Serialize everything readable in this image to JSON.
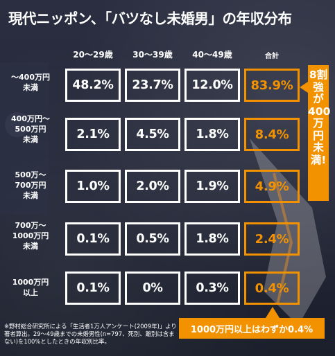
{
  "title": "現代ニッポン、「バツなし未婚男」の年収分布",
  "column_headers": [
    "20〜29歳",
    "30〜39歳",
    "40〜49歳",
    "合計"
  ],
  "row_labels": [
    "〜400万円\n未満",
    "400万円〜\n500万円\n未満",
    "500万〜\n700万円\n未満",
    "700万〜\n1000万円\n未満",
    "1000万円\n以上"
  ],
  "cells": [
    [
      "48.2%",
      "23.7%",
      "12.0%",
      "83.9%"
    ],
    [
      "2.1%",
      "4.5%",
      "1.8%",
      "8.4%"
    ],
    [
      "1.0%",
      "2.0%",
      "1.9%",
      "4.9%"
    ],
    [
      "0.1%",
      "0.5%",
      "1.8%",
      "2.4%"
    ],
    [
      "0.1%",
      "0%",
      "0.3%",
      "0.4%"
    ]
  ],
  "callout_main": "8割強が400万円未満!",
  "callout_bottom": "1000万円以上はわずか0.4%",
  "footnote": "※野村総合研究所による「生活者1万人アンケート(2009年)」より著者算出。29〜49歳までの未婚男性(n=797、死別、離別は含まない)を100%としたときの年収別比率。",
  "colors": {
    "accent": "#f39200",
    "text": "#ffffff",
    "background": "#1e2231"
  },
  "chart_data": {
    "type": "table",
    "title": "現代ニッポン、「バツなし未婚男」の年収分布",
    "columns": [
      "20〜29歳",
      "30〜39歳",
      "40〜49歳",
      "合計"
    ],
    "rows": [
      "〜400万円未満",
      "400万円〜500万円未満",
      "500万〜700万円未満",
      "700万〜1000万円未満",
      "1000万円以上"
    ],
    "values": [
      [
        48.2,
        23.7,
        12.0,
        83.9
      ],
      [
        2.1,
        4.5,
        1.8,
        8.4
      ],
      [
        1.0,
        2.0,
        1.9,
        4.9
      ],
      [
        0.1,
        0.5,
        1.8,
        2.4
      ],
      [
        0.1,
        0,
        0.3,
        0.4
      ]
    ]
  }
}
